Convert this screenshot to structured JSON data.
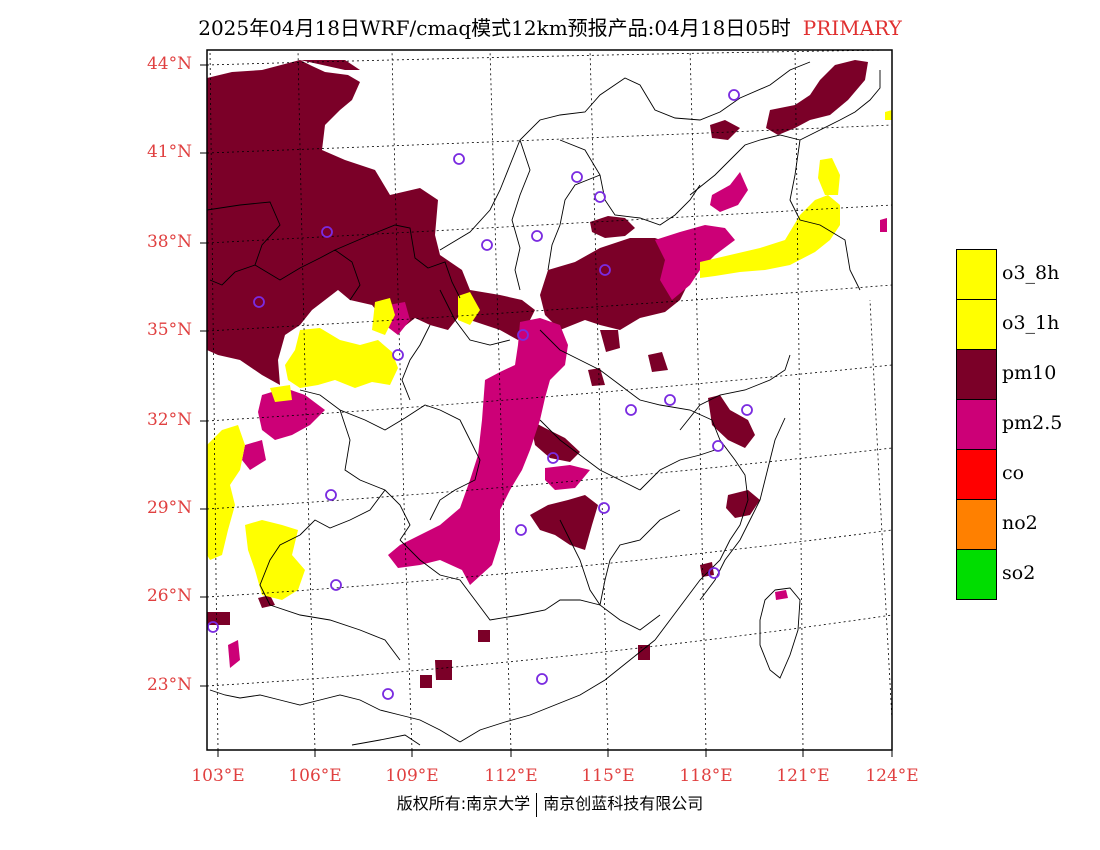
{
  "title": {
    "main": "2025年04月18日WRF/cmaq模式12km预报产品:04月18日05时",
    "tag": "PRIMARY"
  },
  "lat_labels": [
    "44°N",
    "41°N",
    "38°N",
    "35°N",
    "32°N",
    "29°N",
    "26°N",
    "23°N"
  ],
  "lon_labels": [
    "103°E",
    "106°E",
    "109°E",
    "112°E",
    "115°E",
    "118°E",
    "121°E",
    "124°E"
  ],
  "legend": [
    {
      "label": "o3_8h",
      "color": "#ffff00"
    },
    {
      "label": "o3_1h",
      "color": "#ffff00"
    },
    {
      "label": "pm10",
      "color": "#7b0028"
    },
    {
      "label": "pm2.5",
      "color": "#cc0077"
    },
    {
      "label": "co",
      "color": "#ff0000"
    },
    {
      "label": "no2",
      "color": "#ff8000"
    },
    {
      "label": "so2",
      "color": "#00dd00"
    }
  ],
  "footer": {
    "left": "版权所有:南京大学",
    "right": "南京创蓝科技有限公司"
  }
}
